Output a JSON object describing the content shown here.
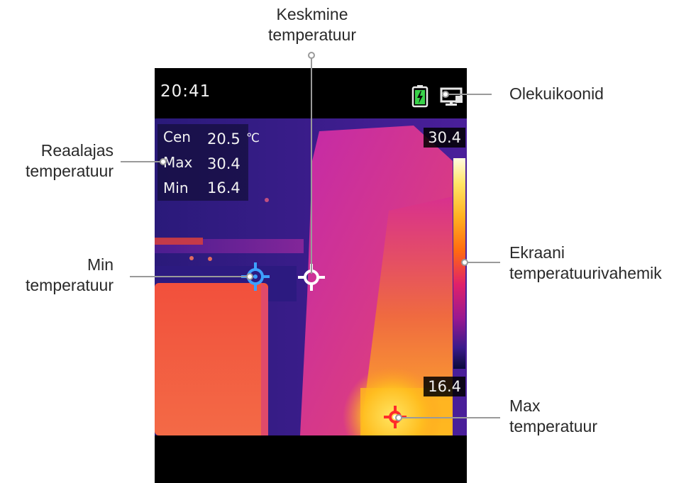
{
  "device": {
    "time": "20:41",
    "readout": [
      {
        "label": "Cen",
        "value": "20.5",
        "unit": "℃"
      },
      {
        "label": "Max",
        "value": "30.4",
        "unit": ""
      },
      {
        "label": "Min",
        "value": "16.4",
        "unit": ""
      }
    ],
    "scale_max": "30.4",
    "scale_min": "16.4",
    "icons": [
      "battery-charging-icon",
      "display-output-icon"
    ]
  },
  "callouts": {
    "center_temp": [
      "Keskmine",
      "temperatuur"
    ],
    "status_icons": [
      "Olekuikoonid"
    ],
    "realtime_temp": [
      "Reaalajas",
      "temperatuur"
    ],
    "min_temp": [
      "Min",
      "temperatuur"
    ],
    "display_range": [
      "Ekraani",
      "temperatuurivahemik"
    ],
    "max_temp": [
      "Max",
      "temperatuur"
    ]
  },
  "colors": {
    "leader_line": "#9a9a9a",
    "min_marker": "#3ea0ff",
    "center_marker": "#ffffff",
    "max_marker": "#ff2a2a",
    "battery": "#39d24a"
  }
}
